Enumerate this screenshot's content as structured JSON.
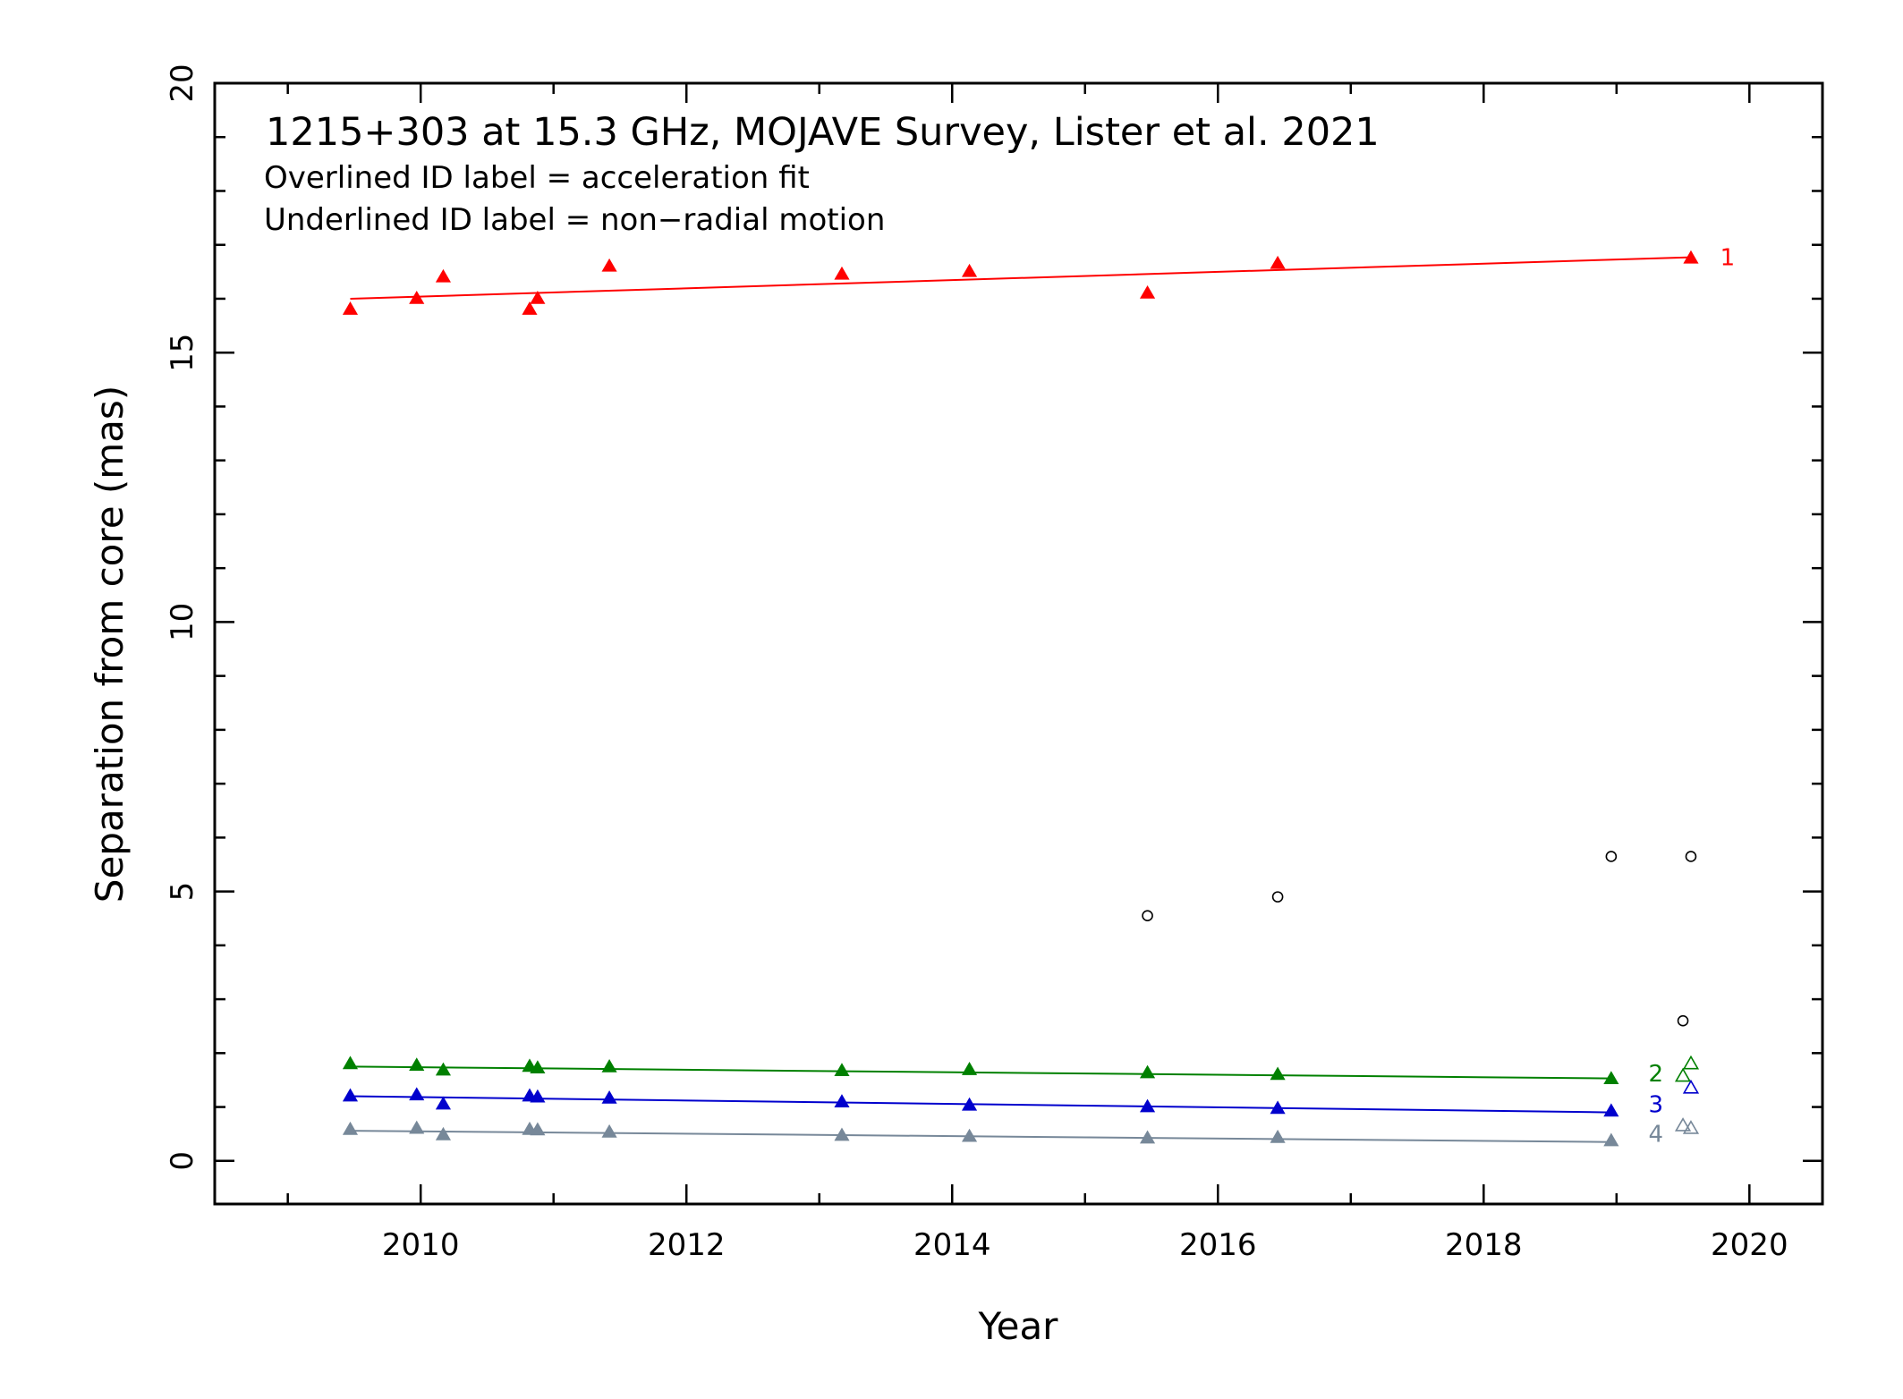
{
  "chart_data": {
    "type": "scatter",
    "title": "1215+303 at 15.3 GHz, MOJAVE Survey, Lister et al. 2021",
    "annotations": [
      "Overlined ID label = acceleration fit",
      "Underlined ID label = non−radial motion"
    ],
    "xlabel": "Year",
    "ylabel": "Separation from core (mas)",
    "xlim": [
      2008.45,
      2020.55
    ],
    "ylim": [
      -0.8,
      20
    ],
    "xticks": [
      2010,
      2012,
      2014,
      2016,
      2018,
      2020
    ],
    "yticks": [
      0,
      5,
      10,
      15,
      20
    ],
    "grid": false,
    "legend": "none",
    "series": [
      {
        "name": "1",
        "color": "#ff0000",
        "marker": "filled-triangle",
        "x": [
          2009.47,
          2009.97,
          2010.17,
          2010.82,
          2010.88,
          2011.42,
          2013.17,
          2014.13,
          2015.47,
          2016.45,
          2019.56
        ],
        "y": [
          15.8,
          16.0,
          16.4,
          15.8,
          16.0,
          16.6,
          16.45,
          16.5,
          16.1,
          16.65,
          16.75
        ],
        "fit": {
          "x": [
            2009.47,
            2019.56
          ],
          "y": [
            16.0,
            16.77
          ]
        },
        "label_pos": {
          "x": 2019.78,
          "y": 16.77
        }
      },
      {
        "name": "2",
        "color": "#008000",
        "marker": "filled-triangle",
        "x": [
          2009.47,
          2009.97,
          2010.17,
          2010.82,
          2010.88,
          2011.42,
          2013.17,
          2014.13,
          2015.47,
          2016.45,
          2018.96
        ],
        "y": [
          1.8,
          1.77,
          1.68,
          1.75,
          1.72,
          1.74,
          1.67,
          1.69,
          1.63,
          1.6,
          1.52
        ],
        "fit": {
          "x": [
            2009.47,
            2018.96
          ],
          "y": [
            1.75,
            1.53
          ]
        },
        "open_points": {
          "x": [
            2019.5,
            2019.56
          ],
          "y": [
            1.57,
            1.8
          ]
        },
        "label_pos": {
          "x": 2019.24,
          "y": 1.62
        }
      },
      {
        "name": "3",
        "color": "#0000cd",
        "marker": "filled-triangle",
        "x": [
          2009.47,
          2009.97,
          2010.17,
          2010.82,
          2010.88,
          2011.42,
          2013.17,
          2014.13,
          2015.47,
          2016.45,
          2018.96
        ],
        "y": [
          1.2,
          1.22,
          1.05,
          1.2,
          1.18,
          1.16,
          1.09,
          1.03,
          1.0,
          0.97,
          0.92
        ],
        "fit": {
          "x": [
            2009.47,
            2018.96
          ],
          "y": [
            1.2,
            0.9
          ]
        },
        "open_points": {
          "x": [
            2019.56
          ],
          "y": [
            1.35
          ]
        },
        "label_pos": {
          "x": 2019.24,
          "y": 1.05
        }
      },
      {
        "name": "4",
        "color": "#778899",
        "marker": "filled-triangle",
        "x": [
          2009.47,
          2009.97,
          2010.17,
          2010.82,
          2010.88,
          2011.42,
          2013.17,
          2014.13,
          2015.47,
          2016.45,
          2018.96
        ],
        "y": [
          0.58,
          0.6,
          0.48,
          0.58,
          0.57,
          0.53,
          0.47,
          0.45,
          0.42,
          0.43,
          0.37
        ],
        "fit": {
          "x": [
            2009.47,
            2018.96
          ],
          "y": [
            0.56,
            0.35
          ]
        },
        "open_points": {
          "x": [
            2019.5,
            2019.56
          ],
          "y": [
            0.65,
            0.6
          ]
        },
        "label_pos": {
          "x": 2019.24,
          "y": 0.5
        }
      }
    ],
    "unassigned": {
      "color": "#000000",
      "marker": "open-circle",
      "x": [
        2015.47,
        2016.45,
        2018.96,
        2019.56,
        2019.5
      ],
      "y": [
        4.55,
        4.9,
        5.65,
        5.65,
        2.6
      ]
    }
  }
}
